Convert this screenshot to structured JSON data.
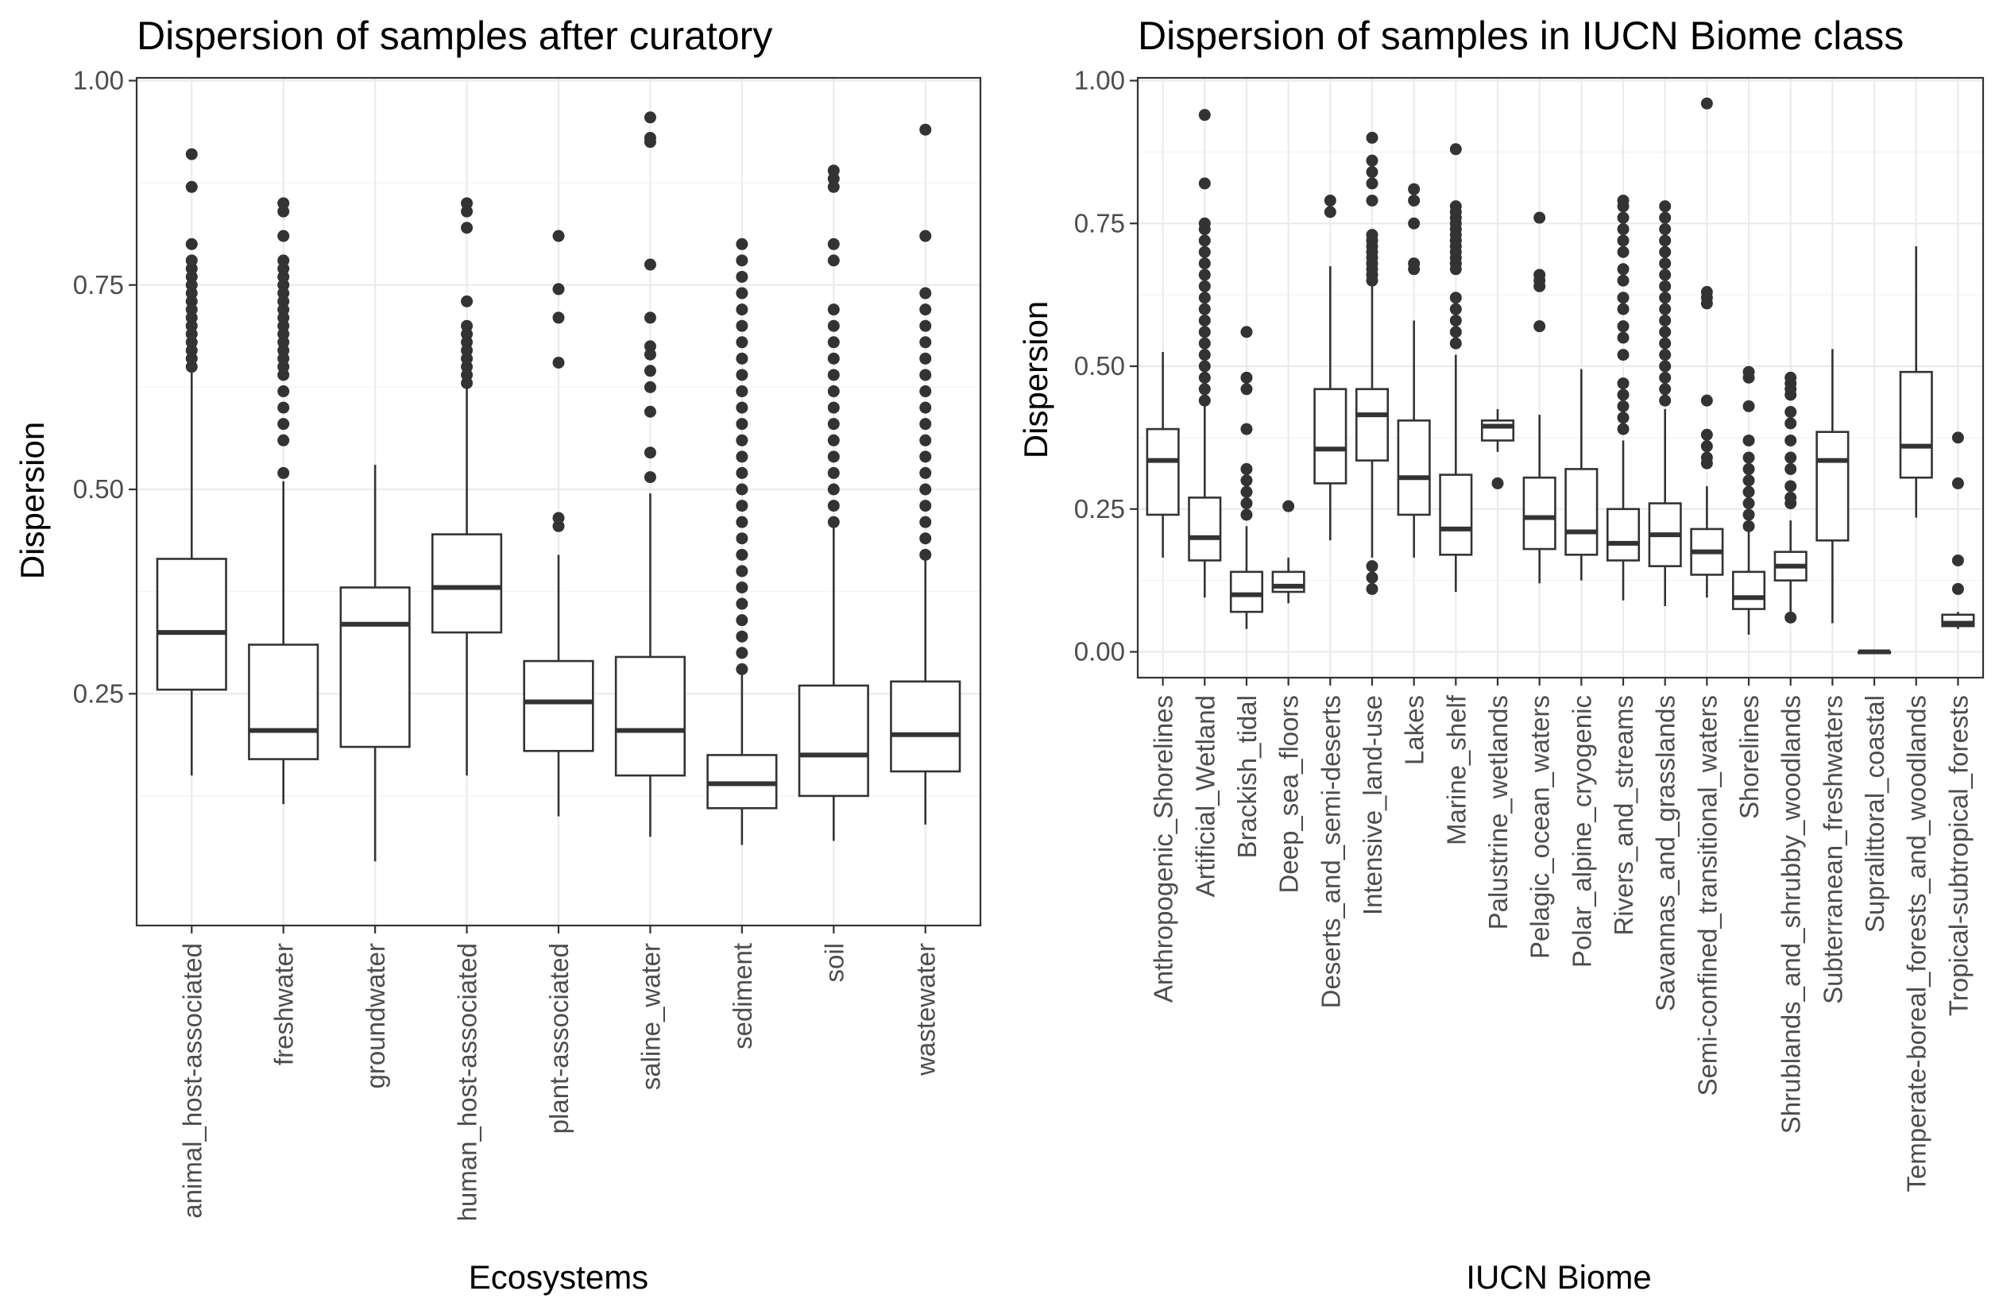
{
  "colors": {
    "box_line": "#333333",
    "grid": "#ebebeb",
    "tick_text": "#4d4d4d",
    "background": "#ffffff"
  },
  "chart_data": [
    {
      "type": "boxplot",
      "title": "Dispersion of samples after curatory",
      "xlabel": "Ecosystems",
      "ylabel": "Dispersion",
      "ylim": [
        0.0,
        1.0
      ],
      "yticks": [
        "0.25",
        "0.50",
        "0.75",
        "1.00"
      ],
      "ytick_values": [
        0.25,
        0.5,
        0.75,
        1.0
      ],
      "grid": true,
      "categories": [
        "animal_host-associated",
        "freshwater",
        "groundwater",
        "human_host-associated",
        "plant-associated",
        "saline_water",
        "sediment",
        "soil",
        "wastewater"
      ],
      "boxes": [
        {
          "whislo": 0.15,
          "q1": 0.255,
          "med": 0.325,
          "q3": 0.415,
          "whishi": 0.645,
          "fliers": [
            0.65,
            0.66,
            0.67,
            0.68,
            0.69,
            0.7,
            0.71,
            0.72,
            0.73,
            0.74,
            0.75,
            0.76,
            0.77,
            0.78,
            0.8,
            0.87,
            0.91
          ]
        },
        {
          "whislo": 0.115,
          "q1": 0.17,
          "med": 0.205,
          "q3": 0.31,
          "whishi": 0.51,
          "fliers": [
            0.52,
            0.56,
            0.58,
            0.6,
            0.62,
            0.64,
            0.65,
            0.66,
            0.67,
            0.68,
            0.69,
            0.7,
            0.71,
            0.72,
            0.73,
            0.74,
            0.75,
            0.76,
            0.77,
            0.78,
            0.81,
            0.84,
            0.85
          ]
        },
        {
          "whislo": 0.045,
          "q1": 0.185,
          "med": 0.335,
          "q3": 0.38,
          "whishi": 0.53,
          "fliers": []
        },
        {
          "whislo": 0.15,
          "q1": 0.325,
          "med": 0.38,
          "q3": 0.445,
          "whishi": 0.625,
          "fliers": [
            0.63,
            0.64,
            0.65,
            0.66,
            0.67,
            0.68,
            0.69,
            0.7,
            0.73,
            0.82,
            0.84,
            0.85
          ]
        },
        {
          "whislo": 0.1,
          "q1": 0.18,
          "med": 0.24,
          "q3": 0.29,
          "whishi": 0.42,
          "fliers": [
            0.455,
            0.465,
            0.655,
            0.71,
            0.745,
            0.81
          ]
        },
        {
          "whislo": 0.075,
          "q1": 0.15,
          "med": 0.205,
          "q3": 0.295,
          "whishi": 0.495,
          "fliers": [
            0.515,
            0.545,
            0.595,
            0.625,
            0.645,
            0.665,
            0.675,
            0.71,
            0.775,
            0.925,
            0.93,
            0.955
          ]
        },
        {
          "whislo": 0.065,
          "q1": 0.11,
          "med": 0.14,
          "q3": 0.175,
          "whishi": 0.275,
          "fliers": [
            0.28,
            0.3,
            0.32,
            0.34,
            0.36,
            0.38,
            0.4,
            0.42,
            0.44,
            0.46,
            0.48,
            0.5,
            0.52,
            0.54,
            0.56,
            0.58,
            0.6,
            0.62,
            0.64,
            0.66,
            0.68,
            0.7,
            0.72,
            0.74,
            0.76,
            0.78,
            0.8
          ]
        },
        {
          "whislo": 0.07,
          "q1": 0.125,
          "med": 0.175,
          "q3": 0.26,
          "whishi": 0.455,
          "fliers": [
            0.46,
            0.48,
            0.5,
            0.52,
            0.54,
            0.56,
            0.58,
            0.6,
            0.62,
            0.64,
            0.66,
            0.68,
            0.7,
            0.72,
            0.78,
            0.8,
            0.87,
            0.88,
            0.89
          ]
        },
        {
          "whislo": 0.09,
          "q1": 0.155,
          "med": 0.2,
          "q3": 0.265,
          "whishi": 0.415,
          "fliers": [
            0.42,
            0.44,
            0.46,
            0.48,
            0.5,
            0.52,
            0.54,
            0.56,
            0.58,
            0.6,
            0.62,
            0.64,
            0.66,
            0.68,
            0.7,
            0.72,
            0.74,
            0.81,
            0.94
          ]
        }
      ]
    },
    {
      "type": "boxplot",
      "title": "Dispersion of samples in IUCN Biome class",
      "xlabel": "IUCN Biome",
      "ylabel": "Dispersion",
      "ylim": [
        0.0,
        1.0
      ],
      "yticks": [
        "0.00",
        "0.25",
        "0.50",
        "0.75",
        "1.00"
      ],
      "ytick_values": [
        0.0,
        0.25,
        0.5,
        0.75,
        1.0
      ],
      "grid": true,
      "categories": [
        "Anthropogenic_Shorelines",
        "Artificial_Wetland",
        "Brackish_tidal",
        "Deep_sea_floors",
        "Deserts_and_semi-deserts",
        "Intensive_land-use",
        "Lakes",
        "Marine_shelf",
        "Palustrine_wetlands",
        "Pelagic_ocean_waters",
        "Polar_alpine_cryogenic",
        "Rivers_and_streams",
        "Savannas_and_grasslands",
        "Semi-confined_transitional_waters",
        "Shorelines",
        "Shrublands_and_shrubby_woodlands",
        "Subterranean_freshwaters",
        "Supralittoral_coastal",
        "Temperate-boreal_forests_and_woodlands",
        "Tropical-subtropical_forests"
      ],
      "boxes": [
        {
          "whislo": 0.165,
          "q1": 0.24,
          "med": 0.335,
          "q3": 0.39,
          "whishi": 0.525,
          "fliers": []
        },
        {
          "whislo": 0.095,
          "q1": 0.16,
          "med": 0.2,
          "q3": 0.27,
          "whishi": 0.43,
          "fliers": [
            0.44,
            0.46,
            0.48,
            0.5,
            0.52,
            0.54,
            0.56,
            0.58,
            0.6,
            0.62,
            0.64,
            0.66,
            0.68,
            0.7,
            0.72,
            0.74,
            0.75,
            0.82,
            0.94
          ]
        },
        {
          "whislo": 0.04,
          "q1": 0.07,
          "med": 0.1,
          "q3": 0.14,
          "whishi": 0.22,
          "fliers": [
            0.24,
            0.26,
            0.28,
            0.3,
            0.32,
            0.39,
            0.46,
            0.48,
            0.56
          ]
        },
        {
          "whislo": 0.085,
          "q1": 0.105,
          "med": 0.115,
          "q3": 0.14,
          "whishi": 0.165,
          "fliers": [
            0.255
          ]
        },
        {
          "whislo": 0.195,
          "q1": 0.295,
          "med": 0.355,
          "q3": 0.46,
          "whishi": 0.675,
          "fliers": [
            0.77,
            0.79
          ]
        },
        {
          "whislo": 0.165,
          "q1": 0.335,
          "med": 0.415,
          "q3": 0.46,
          "whishi": 0.64,
          "fliers": [
            0.11,
            0.13,
            0.15,
            0.65,
            0.66,
            0.67,
            0.68,
            0.69,
            0.7,
            0.71,
            0.72,
            0.73,
            0.79,
            0.82,
            0.84,
            0.86,
            0.9
          ]
        },
        {
          "whislo": 0.165,
          "q1": 0.24,
          "med": 0.305,
          "q3": 0.405,
          "whishi": 0.58,
          "fliers": [
            0.67,
            0.68,
            0.75,
            0.79,
            0.81
          ]
        },
        {
          "whislo": 0.105,
          "q1": 0.17,
          "med": 0.215,
          "q3": 0.31,
          "whishi": 0.52,
          "fliers": [
            0.54,
            0.56,
            0.58,
            0.6,
            0.62,
            0.67,
            0.68,
            0.69,
            0.7,
            0.71,
            0.72,
            0.73,
            0.74,
            0.75,
            0.76,
            0.77,
            0.78,
            0.88
          ]
        },
        {
          "whislo": 0.35,
          "q1": 0.37,
          "med": 0.395,
          "q3": 0.405,
          "whishi": 0.425,
          "fliers": [
            0.295
          ]
        },
        {
          "whislo": 0.12,
          "q1": 0.18,
          "med": 0.235,
          "q3": 0.305,
          "whishi": 0.415,
          "fliers": [
            0.57,
            0.64,
            0.65,
            0.66,
            0.76
          ]
        },
        {
          "whislo": 0.125,
          "q1": 0.17,
          "med": 0.21,
          "q3": 0.32,
          "whishi": 0.495,
          "fliers": []
        },
        {
          "whislo": 0.09,
          "q1": 0.16,
          "med": 0.19,
          "q3": 0.25,
          "whishi": 0.37,
          "fliers": [
            0.39,
            0.41,
            0.43,
            0.45,
            0.47,
            0.52,
            0.55,
            0.57,
            0.6,
            0.62,
            0.65,
            0.67,
            0.7,
            0.72,
            0.74,
            0.76,
            0.78,
            0.79
          ]
        },
        {
          "whislo": 0.08,
          "q1": 0.15,
          "med": 0.205,
          "q3": 0.26,
          "whishi": 0.425,
          "fliers": [
            0.44,
            0.46,
            0.48,
            0.5,
            0.52,
            0.54,
            0.56,
            0.58,
            0.6,
            0.62,
            0.64,
            0.66,
            0.68,
            0.7,
            0.72,
            0.74,
            0.76,
            0.78
          ]
        },
        {
          "whislo": 0.095,
          "q1": 0.135,
          "med": 0.175,
          "q3": 0.215,
          "whishi": 0.29,
          "fliers": [
            0.33,
            0.34,
            0.36,
            0.38,
            0.44,
            0.61,
            0.62,
            0.63,
            0.96
          ]
        },
        {
          "whislo": 0.03,
          "q1": 0.075,
          "med": 0.095,
          "q3": 0.14,
          "whishi": 0.21,
          "fliers": [
            0.22,
            0.24,
            0.26,
            0.28,
            0.3,
            0.32,
            0.34,
            0.37,
            0.43,
            0.48,
            0.49
          ]
        },
        {
          "whislo": 0.06,
          "q1": 0.125,
          "med": 0.15,
          "q3": 0.175,
          "whishi": 0.23,
          "fliers": [
            0.06,
            0.26,
            0.27,
            0.29,
            0.32,
            0.34,
            0.37,
            0.4,
            0.42,
            0.45,
            0.46,
            0.47,
            0.48
          ]
        },
        {
          "whislo": 0.05,
          "q1": 0.195,
          "med": 0.335,
          "q3": 0.385,
          "whishi": 0.53,
          "fliers": []
        },
        {
          "whislo": 0.0,
          "q1": 0.0,
          "med": 0.0,
          "q3": 0.0,
          "whishi": 0.0,
          "fliers": []
        },
        {
          "whislo": 0.235,
          "q1": 0.305,
          "med": 0.36,
          "q3": 0.49,
          "whishi": 0.71,
          "fliers": []
        },
        {
          "whislo": 0.04,
          "q1": 0.045,
          "med": 0.05,
          "q3": 0.065,
          "whishi": 0.07,
          "fliers": [
            0.11,
            0.16,
            0.295,
            0.375
          ]
        }
      ]
    }
  ]
}
